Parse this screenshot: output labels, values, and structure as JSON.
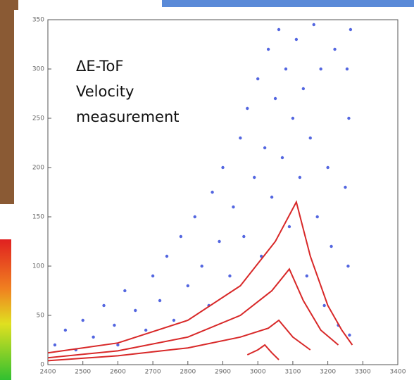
{
  "chart_data": {
    "type": "scatter",
    "annotation": [
      "ΔE-ToF",
      "Velocity",
      "measurement"
    ],
    "xlim": [
      2400,
      3400
    ],
    "xticks": [
      2400,
      2500,
      2600,
      2700,
      2800,
      2900,
      3000,
      3100,
      3200,
      3300,
      3400
    ],
    "ylim": [
      0,
      350
    ],
    "yticks": [
      0,
      50,
      100,
      150,
      200,
      250,
      300,
      350
    ],
    "series": [
      {
        "mode": "markers",
        "color": "#2840d8",
        "x": [
          2420,
          2450,
          2480,
          2500,
          2530,
          2560,
          2590,
          2600,
          2620,
          2650,
          2680,
          2700,
          2720,
          2740,
          2760,
          2780,
          2800,
          2820,
          2840,
          2860,
          2870,
          2890,
          2900,
          2920,
          2930,
          2950,
          2960,
          2970,
          2990,
          3000,
          3010,
          3020,
          3030,
          3040,
          3050,
          3060,
          3070,
          3080,
          3090,
          3100,
          3110,
          3120,
          3130,
          3140,
          3150,
          3160,
          3170,
          3180,
          3190,
          3200,
          3210,
          3220,
          3230,
          3250,
          3255,
          3258,
          3260,
          3262,
          3265
        ],
        "y": [
          20,
          35,
          15,
          45,
          28,
          60,
          40,
          20,
          75,
          55,
          35,
          90,
          65,
          110,
          45,
          130,
          80,
          150,
          100,
          60,
          175,
          125,
          200,
          90,
          160,
          230,
          130,
          260,
          190,
          290,
          110,
          220,
          320,
          170,
          270,
          340,
          210,
          300,
          140,
          250,
          330,
          190,
          280,
          90,
          230,
          345,
          150,
          300,
          60,
          200,
          120,
          320,
          40,
          180,
          300,
          100,
          250,
          30,
          340
        ]
      },
      {
        "mode": "lines",
        "color": "#d82828",
        "x": [
          2400,
          2600,
          2800,
          2950,
          3050,
          3110,
          3150,
          3200,
          3240,
          3270
        ],
        "y": [
          12,
          22,
          45,
          80,
          125,
          165,
          110,
          60,
          35,
          20
        ]
      },
      {
        "mode": "lines",
        "color": "#d82828",
        "x": [
          2400,
          2600,
          2800,
          2950,
          3040,
          3090,
          3130,
          3180,
          3230
        ],
        "y": [
          7,
          14,
          28,
          50,
          75,
          97,
          65,
          35,
          20
        ]
      },
      {
        "mode": "lines",
        "color": "#d82828",
        "x": [
          2400,
          2600,
          2800,
          2950,
          3030,
          3060,
          3100,
          3150
        ],
        "y": [
          4,
          9,
          17,
          28,
          37,
          45,
          28,
          15
        ]
      },
      {
        "mode": "lines",
        "color": "#d82828",
        "x": [
          2970,
          3000,
          3020,
          3040,
          3060
        ],
        "y": [
          10,
          15,
          20,
          12,
          5
        ]
      }
    ]
  }
}
